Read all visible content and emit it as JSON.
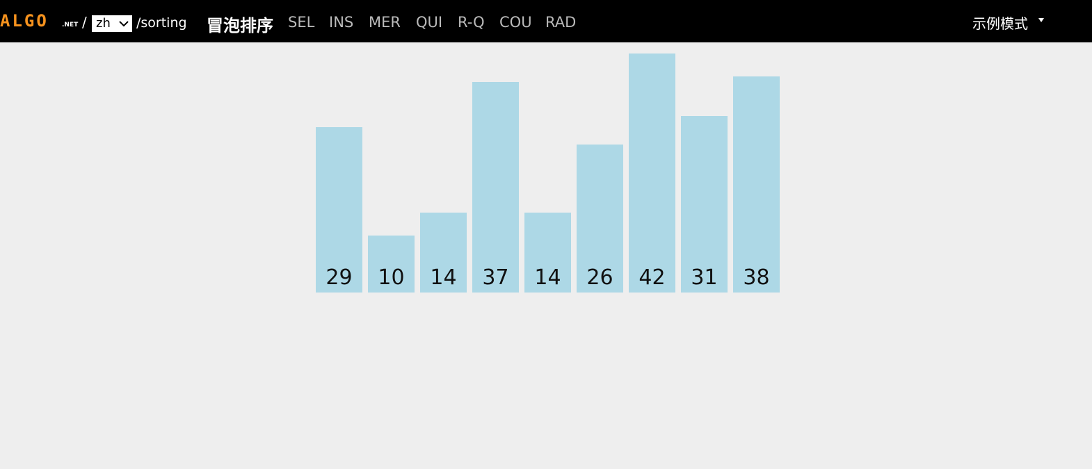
{
  "header": {
    "logo": "ALGO",
    "logo_suffix": ".NET",
    "separator": "/",
    "language": "zh",
    "path": "/sorting",
    "active": "冒泡排序",
    "nav": [
      "SEL",
      "INS",
      "MER",
      "QUI",
      "R-Q",
      "COU",
      "RAD"
    ],
    "mode": "示例模式"
  },
  "bars": {
    "values": [
      29,
      10,
      14,
      37,
      14,
      26,
      42,
      31,
      38
    ],
    "color": "#add8e6"
  }
}
